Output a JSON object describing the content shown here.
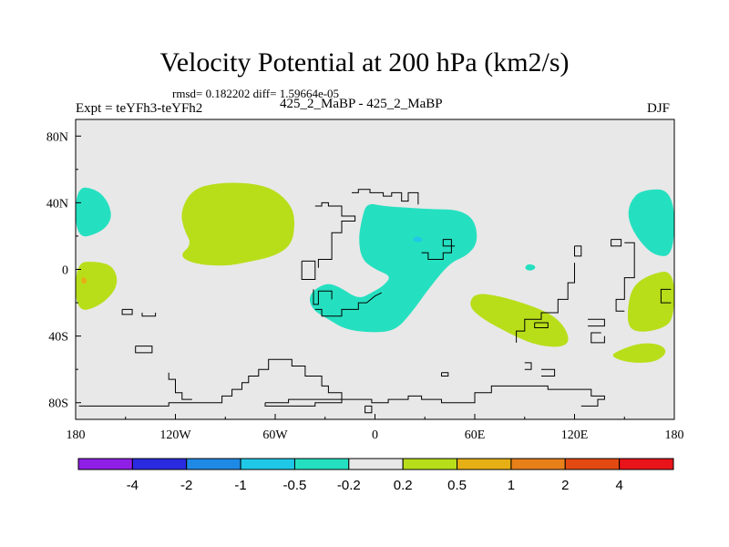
{
  "chart_data": {
    "type": "heatmap",
    "title": "Velocity Potential at 200 hPa (km2/s)",
    "subtitle": "rmsd= 0.182202 diff= 1.59664e-05",
    "left_label": "Expt = teYFh3-teYFh2",
    "center_label": "425_2_MaBP - 425_2_MaBP",
    "right_label": "DJF",
    "xlim": [
      -180,
      180
    ],
    "ylim": [
      -90,
      90
    ],
    "x_ticks": [
      {
        "value": -180,
        "label": "180"
      },
      {
        "value": -120,
        "label": "120W"
      },
      {
        "value": -60,
        "label": "60W"
      },
      {
        "value": 0,
        "label": "0"
      },
      {
        "value": 60,
        "label": "60E"
      },
      {
        "value": 120,
        "label": "120E"
      },
      {
        "value": 180,
        "label": "180"
      }
    ],
    "y_ticks": [
      {
        "value": 80,
        "label": "80N"
      },
      {
        "value": 40,
        "label": "40N"
      },
      {
        "value": 0,
        "label": "0"
      },
      {
        "value": -40,
        "label": "40S"
      },
      {
        "value": -80,
        "label": "80S"
      }
    ],
    "colorbar": {
      "colors": [
        "#8f1fe6",
        "#2a2ae0",
        "#1f8ae6",
        "#1fc8e6",
        "#25e0c0",
        "#e8e8e8",
        "#b8de1a",
        "#e6b014",
        "#e8801a",
        "#e34a12",
        "#e8141a"
      ],
      "labels": [
        "-4",
        "-2",
        "-1",
        "-0.5",
        "-0.2",
        "0.2",
        "0.5",
        "1",
        "2",
        "4"
      ]
    },
    "regions": [
      {
        "name": "nw-pacific-positive",
        "category": 6,
        "points": [
          [
            -110,
            48
          ],
          [
            -95,
            52
          ],
          [
            -75,
            52
          ],
          [
            -60,
            48
          ],
          [
            -50,
            38
          ],
          [
            -48,
            28
          ],
          [
            -50,
            15
          ],
          [
            -60,
            8
          ],
          [
            -78,
            4
          ],
          [
            -90,
            2
          ],
          [
            -108,
            3
          ],
          [
            -118,
            8
          ],
          [
            -110,
            15
          ],
          [
            -115,
            24
          ],
          [
            -117,
            35
          ]
        ]
      },
      {
        "name": "west-pacific-negative",
        "category": 4,
        "points": [
          [
            -180,
            50
          ],
          [
            -167,
            48
          ],
          [
            -160,
            40
          ],
          [
            -158,
            30
          ],
          [
            -165,
            22
          ],
          [
            -180,
            18
          ]
        ]
      },
      {
        "name": "central-pacific-positive",
        "category": 6,
        "points": [
          [
            -180,
            4
          ],
          [
            -168,
            5
          ],
          [
            -157,
            2
          ],
          [
            -154,
            -10
          ],
          [
            -165,
            -22
          ],
          [
            -180,
            -26
          ]
        ]
      },
      {
        "name": "central-pacific-orange",
        "category": 7,
        "points": [
          [
            -176,
            -4
          ],
          [
            -173,
            -6
          ],
          [
            -174,
            -9
          ],
          [
            -177,
            -8
          ]
        ]
      },
      {
        "name": "africa-asia-negative",
        "category": 4,
        "points": [
          [
            -5,
            40
          ],
          [
            5,
            38
          ],
          [
            20,
            37
          ],
          [
            35,
            36
          ],
          [
            50,
            36
          ],
          [
            60,
            30
          ],
          [
            62,
            16
          ],
          [
            55,
            8
          ],
          [
            45,
            4
          ],
          [
            32,
            -12
          ],
          [
            22,
            -26
          ],
          [
            12,
            -37
          ],
          [
            -3,
            -38
          ],
          [
            -18,
            -36
          ],
          [
            -28,
            -30
          ],
          [
            -38,
            -24
          ],
          [
            -40,
            -15
          ],
          [
            -30,
            -8
          ],
          [
            -22,
            -10
          ],
          [
            -10,
            -18
          ],
          [
            -2,
            -14
          ],
          [
            5,
            -10
          ],
          [
            10,
            -4
          ],
          [
            0,
            0
          ],
          [
            -8,
            6
          ],
          [
            -10,
            18
          ],
          [
            -8,
            30
          ]
        ]
      },
      {
        "name": "africa-asia-blue-spot",
        "category": 3,
        "points": [
          [
            23,
            19
          ],
          [
            26,
            20
          ],
          [
            29,
            18
          ],
          [
            27,
            16
          ],
          [
            23,
            17
          ]
        ]
      },
      {
        "name": "east-pacific-negative",
        "category": 4,
        "points": [
          [
            180,
            48
          ],
          [
            160,
            48
          ],
          [
            153,
            40
          ],
          [
            152,
            30
          ],
          [
            158,
            18
          ],
          [
            168,
            8
          ],
          [
            180,
            8
          ]
        ]
      },
      {
        "name": "indian-ocean-spot-negative",
        "category": 4,
        "points": [
          [
            91,
            3
          ],
          [
            95,
            3
          ],
          [
            97,
            1
          ],
          [
            94,
            -1
          ],
          [
            90,
            0
          ]
        ]
      },
      {
        "name": "indian-ocean-positive",
        "category": 6,
        "points": [
          [
            60,
            -14
          ],
          [
            75,
            -16
          ],
          [
            95,
            -22
          ],
          [
            108,
            -28
          ],
          [
            115,
            -36
          ],
          [
            117,
            -44
          ],
          [
            110,
            -47
          ],
          [
            95,
            -45
          ],
          [
            80,
            -38
          ],
          [
            65,
            -30
          ],
          [
            56,
            -22
          ]
        ]
      },
      {
        "name": "east-pacific-positive",
        "category": 6,
        "points": [
          [
            180,
            0
          ],
          [
            165,
            -3
          ],
          [
            155,
            -10
          ],
          [
            152,
            -22
          ],
          [
            152,
            -34
          ],
          [
            158,
            -38
          ],
          [
            172,
            -36
          ],
          [
            180,
            -30
          ]
        ]
      },
      {
        "name": "south-pacific-positive",
        "category": 6,
        "points": [
          [
            148,
            -48
          ],
          [
            160,
            -44
          ],
          [
            172,
            -45
          ],
          [
            176,
            -50
          ],
          [
            168,
            -56
          ],
          [
            152,
            -56
          ],
          [
            141,
            -52
          ]
        ]
      }
    ],
    "coastlines": [
      [
        [
          -14,
          46
        ],
        [
          -10,
          46
        ],
        [
          -10,
          48
        ],
        [
          -3,
          48
        ],
        [
          -3,
          46
        ],
        [
          5,
          46
        ],
        [
          5,
          44
        ],
        [
          10,
          44
        ],
        [
          10,
          46
        ],
        [
          16,
          46
        ],
        [
          16,
          41
        ],
        [
          20,
          41
        ],
        [
          20,
          46
        ],
        [
          26,
          46
        ],
        [
          26,
          39
        ]
      ],
      [
        [
          -36,
          38
        ],
        [
          -32,
          38
        ],
        [
          -32,
          40
        ],
        [
          -28,
          40
        ],
        [
          -28,
          38
        ],
        [
          -20,
          38
        ],
        [
          -20,
          32
        ],
        [
          -12,
          32
        ],
        [
          -12,
          29
        ],
        [
          -20,
          29
        ],
        [
          -20,
          22
        ],
        [
          -26,
          22
        ],
        [
          -26,
          6
        ],
        [
          -34,
          6
        ],
        [
          -34,
          1
        ]
      ],
      [
        [
          -44,
          5
        ],
        [
          -36,
          5
        ],
        [
          -36,
          -6
        ],
        [
          -44,
          -6
        ],
        [
          -44,
          5
        ]
      ],
      [
        [
          -37,
          -12
        ],
        [
          -37,
          -21
        ],
        [
          -34,
          -21
        ],
        [
          -34,
          -13
        ],
        [
          -26,
          -13
        ],
        [
          -26,
          -18
        ]
      ],
      [
        [
          -36,
          -24
        ],
        [
          -32,
          -24
        ],
        [
          -32,
          -28
        ],
        [
          -20,
          -28
        ],
        [
          -20,
          -24
        ],
        [
          -10,
          -24
        ],
        [
          -10,
          -20
        ],
        [
          -5,
          -20
        ],
        [
          0,
          -16
        ],
        [
          4,
          -14
        ]
      ],
      [
        [
          48,
          14
        ],
        [
          41,
          14
        ],
        [
          41,
          18
        ],
        [
          46,
          18
        ],
        [
          46,
          10
        ],
        [
          41,
          10
        ],
        [
          41,
          6
        ],
        [
          32,
          6
        ],
        [
          32,
          10
        ],
        [
          28,
          10
        ]
      ],
      [
        [
          120,
          14
        ],
        [
          124,
          14
        ],
        [
          124,
          8
        ],
        [
          120,
          8
        ],
        [
          120,
          14
        ]
      ],
      [
        [
          142,
          18
        ],
        [
          148,
          18
        ],
        [
          148,
          14
        ],
        [
          142,
          14
        ],
        [
          142,
          18
        ]
      ],
      [
        [
          150,
          16
        ],
        [
          156,
          16
        ],
        [
          156,
          -5
        ],
        [
          150,
          -5
        ],
        [
          150,
          -18
        ],
        [
          145,
          -18
        ],
        [
          145,
          -25
        ],
        [
          150,
          -25
        ]
      ],
      [
        [
          120,
          4
        ],
        [
          120,
          -8
        ],
        [
          116,
          -8
        ],
        [
          116,
          -18
        ],
        [
          110,
          -18
        ],
        [
          110,
          -26
        ],
        [
          100,
          -26
        ],
        [
          100,
          -30
        ],
        [
          90,
          -30
        ],
        [
          90,
          -37
        ],
        [
          85,
          -37
        ],
        [
          85,
          -44
        ]
      ],
      [
        [
          96,
          -32
        ],
        [
          104,
          -32
        ],
        [
          104,
          -35
        ],
        [
          96,
          -35
        ],
        [
          96,
          -32
        ]
      ],
      [
        [
          128,
          -30
        ],
        [
          138,
          -30
        ],
        [
          138,
          -34
        ],
        [
          128,
          -34
        ]
      ],
      [
        [
          138,
          -40
        ],
        [
          138,
          -44
        ],
        [
          130,
          -44
        ],
        [
          130,
          -38
        ],
        [
          136,
          -38
        ]
      ],
      [
        [
          178,
          -12
        ],
        [
          172,
          -12
        ],
        [
          172,
          -20
        ],
        [
          178,
          -20
        ]
      ],
      [
        [
          -152,
          -24
        ],
        [
          -152,
          -27
        ],
        [
          -146,
          -27
        ],
        [
          -146,
          -24
        ],
        [
          -152,
          -24
        ]
      ],
      [
        [
          -140,
          -26
        ],
        [
          -140,
          -28
        ],
        [
          -132,
          -28
        ],
        [
          -132,
          -26
        ]
      ],
      [
        [
          -144,
          -46
        ],
        [
          -134,
          -46
        ],
        [
          -134,
          -50
        ],
        [
          -144,
          -50
        ],
        [
          -144,
          -46
        ]
      ],
      [
        [
          -124,
          -62
        ],
        [
          -124,
          -66
        ],
        [
          -120,
          -66
        ],
        [
          -120,
          -74
        ],
        [
          -116,
          -74
        ],
        [
          -116,
          -78
        ],
        [
          -110,
          -78
        ]
      ],
      [
        [
          -178,
          -82
        ],
        [
          -124,
          -82
        ],
        [
          -124,
          -80
        ],
        [
          -92,
          -80
        ],
        [
          -92,
          -76
        ],
        [
          -86,
          -76
        ],
        [
          -86,
          -72
        ],
        [
          -80,
          -72
        ],
        [
          -80,
          -68
        ],
        [
          -76,
          -68
        ],
        [
          -76,
          -64
        ],
        [
          -70,
          -64
        ],
        [
          -70,
          -60
        ],
        [
          -64,
          -60
        ],
        [
          -64,
          -54
        ],
        [
          -50,
          -54
        ],
        [
          -50,
          -58
        ],
        [
          -42,
          -58
        ],
        [
          -42,
          -64
        ],
        [
          -32,
          -64
        ],
        [
          -32,
          -70
        ],
        [
          -28,
          -70
        ],
        [
          -28,
          -74
        ],
        [
          -20,
          -74
        ],
        [
          -20,
          -78
        ],
        [
          -2,
          -78
        ],
        [
          -2,
          -80
        ],
        [
          8,
          -80
        ],
        [
          8,
          -78
        ],
        [
          20,
          -78
        ],
        [
          20,
          -76
        ],
        [
          28,
          -76
        ],
        [
          28,
          -78
        ],
        [
          40,
          -78
        ],
        [
          40,
          -80
        ],
        [
          60,
          -80
        ],
        [
          60,
          -74
        ],
        [
          70,
          -74
        ],
        [
          70,
          -70
        ],
        [
          104,
          -70
        ],
        [
          104,
          -72
        ],
        [
          130,
          -72
        ],
        [
          130,
          -76
        ],
        [
          138,
          -76
        ],
        [
          138,
          -78
        ],
        [
          134,
          -78
        ],
        [
          134,
          -82
        ],
        [
          124,
          -82
        ]
      ],
      [
        [
          -66,
          -80
        ],
        [
          -52,
          -80
        ],
        [
          -52,
          -78
        ],
        [
          -20,
          -78
        ],
        [
          -20,
          -80
        ],
        [
          -36,
          -80
        ],
        [
          -36,
          -82
        ],
        [
          -66,
          -82
        ],
        [
          -66,
          -80
        ]
      ],
      [
        [
          -6,
          -82
        ],
        [
          -2,
          -82
        ],
        [
          -2,
          -86
        ],
        [
          -6,
          -86
        ],
        [
          -6,
          -82
        ]
      ],
      [
        [
          40,
          -62
        ],
        [
          44,
          -62
        ],
        [
          44,
          -64
        ],
        [
          40,
          -64
        ],
        [
          40,
          -62
        ]
      ],
      [
        [
          90,
          -56
        ],
        [
          94,
          -56
        ],
        [
          94,
          -60
        ],
        [
          90,
          -60
        ]
      ],
      [
        [
          100,
          -64
        ],
        [
          108,
          -64
        ],
        [
          108,
          -60
        ],
        [
          100,
          -60
        ]
      ]
    ]
  }
}
